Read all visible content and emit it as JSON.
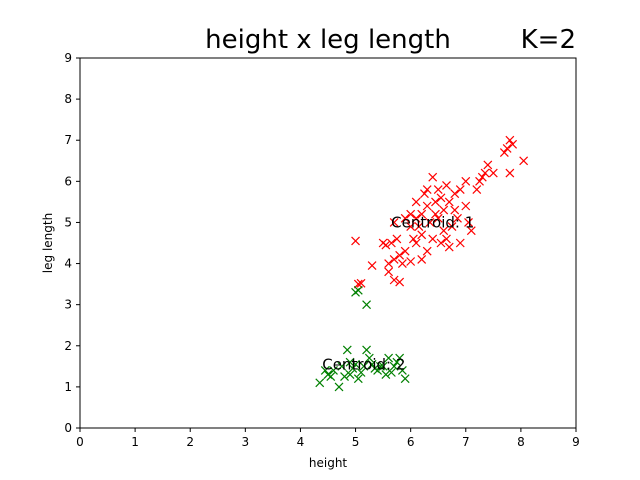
{
  "chart_data": {
    "type": "scatter",
    "title": "height x leg length",
    "title_right": "K=2",
    "xlabel": "height",
    "ylabel": "leg length",
    "xlim": [
      0,
      9
    ],
    "ylim": [
      0,
      9
    ],
    "xticks": [
      "0",
      "1",
      "2",
      "3",
      "4",
      "5",
      "6",
      "7",
      "8",
      "9"
    ],
    "yticks": [
      "0",
      "1",
      "2",
      "3",
      "4",
      "5",
      "6",
      "7",
      "8",
      "9"
    ],
    "grid": false,
    "marker": "x",
    "series": [
      {
        "color": "#ff0000",
        "points": [
          [
            5.0,
            4.55
          ],
          [
            5.05,
            3.5
          ],
          [
            5.1,
            3.52
          ],
          [
            5.3,
            3.95
          ],
          [
            5.5,
            4.5
          ],
          [
            5.6,
            3.8
          ],
          [
            5.6,
            4.0
          ],
          [
            5.65,
            4.5
          ],
          [
            5.7,
            4.1
          ],
          [
            5.7,
            3.6
          ],
          [
            5.75,
            4.6
          ],
          [
            5.8,
            4.2
          ],
          [
            5.8,
            3.55
          ],
          [
            5.85,
            4.0
          ],
          [
            5.9,
            4.3
          ],
          [
            5.7,
            5.0
          ],
          [
            5.9,
            5.1
          ],
          [
            6.0,
            5.2
          ],
          [
            6.0,
            4.9
          ],
          [
            6.05,
            4.6
          ],
          [
            6.1,
            4.5
          ],
          [
            6.1,
            5.5
          ],
          [
            6.1,
            5.1
          ],
          [
            6.2,
            5.2
          ],
          [
            6.15,
            4.9
          ],
          [
            6.2,
            4.7
          ],
          [
            6.2,
            4.1
          ],
          [
            6.25,
            5.7
          ],
          [
            6.3,
            5.4
          ],
          [
            6.3,
            4.3
          ],
          [
            6.35,
            5.0
          ],
          [
            6.4,
            6.1
          ],
          [
            6.4,
            4.6
          ],
          [
            6.45,
            5.5
          ],
          [
            6.5,
            5.8
          ],
          [
            6.5,
            5.1
          ],
          [
            6.55,
            5.6
          ],
          [
            6.55,
            4.5
          ],
          [
            6.6,
            5.3
          ],
          [
            6.6,
            4.8
          ],
          [
            6.65,
            5.9
          ],
          [
            6.7,
            5.5
          ],
          [
            6.7,
            4.4
          ],
          [
            6.75,
            4.9
          ],
          [
            6.8,
            5.7
          ],
          [
            6.85,
            5.1
          ],
          [
            6.9,
            5.8
          ],
          [
            6.9,
            4.5
          ],
          [
            7.0,
            5.4
          ],
          [
            7.0,
            6.0
          ],
          [
            7.05,
            5.0
          ],
          [
            7.1,
            4.8
          ],
          [
            7.2,
            5.8
          ],
          [
            7.25,
            6.0
          ],
          [
            7.3,
            6.1
          ],
          [
            7.35,
            6.2
          ],
          [
            7.4,
            6.4
          ],
          [
            7.5,
            6.2
          ],
          [
            7.7,
            6.7
          ],
          [
            7.75,
            6.8
          ],
          [
            7.8,
            7.0
          ],
          [
            7.8,
            6.2
          ],
          [
            7.85,
            6.9
          ],
          [
            8.05,
            6.5
          ],
          [
            6.0,
            4.05
          ],
          [
            5.55,
            4.45
          ],
          [
            6.3,
            5.8
          ],
          [
            6.8,
            5.3
          ],
          [
            6.45,
            5.2
          ],
          [
            6.65,
            4.6
          ]
        ]
      },
      {
        "color": "#008000",
        "points": [
          [
            4.35,
            1.1
          ],
          [
            4.45,
            1.4
          ],
          [
            4.5,
            1.3
          ],
          [
            4.55,
            1.25
          ],
          [
            4.6,
            1.4
          ],
          [
            4.7,
            1.0
          ],
          [
            4.75,
            1.5
          ],
          [
            4.8,
            1.25
          ],
          [
            4.85,
            1.9
          ],
          [
            4.9,
            1.6
          ],
          [
            4.95,
            1.45
          ],
          [
            5.0,
            3.3
          ],
          [
            5.05,
            3.35
          ],
          [
            5.05,
            1.2
          ],
          [
            5.1,
            1.35
          ],
          [
            5.15,
            1.5
          ],
          [
            5.2,
            3.0
          ],
          [
            5.2,
            1.9
          ],
          [
            5.25,
            1.7
          ],
          [
            5.3,
            1.55
          ],
          [
            5.4,
            1.4
          ],
          [
            5.45,
            1.5
          ],
          [
            5.5,
            1.5
          ],
          [
            5.55,
            1.3
          ],
          [
            5.6,
            1.7
          ],
          [
            5.65,
            1.35
          ],
          [
            5.7,
            1.5
          ],
          [
            5.75,
            1.6
          ],
          [
            5.8,
            1.7
          ],
          [
            5.85,
            1.4
          ],
          [
            5.9,
            1.2
          ],
          [
            4.9,
            1.3
          ],
          [
            5.0,
            1.55
          ],
          [
            5.35,
            1.45
          ]
        ]
      }
    ],
    "annotations": [
      {
        "text": "Centroid: 1",
        "x": 6.4,
        "y": 5.0
      },
      {
        "text": "Centroid: 2",
        "x": 5.15,
        "y": 1.55
      }
    ]
  }
}
